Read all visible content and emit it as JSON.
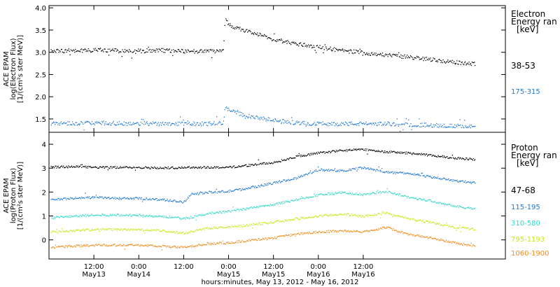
{
  "chart_data": [
    {
      "type": "scatter",
      "panel": "electron",
      "ylabel_lines": [
        "ACE EPAM",
        "log(Electron Flux)",
        "[1/(cm²s ster MeV)]"
      ],
      "ylim": [
        1.2,
        4.05
      ],
      "yticks": [
        1.5,
        2.0,
        2.5,
        3.0,
        3.5,
        4.0
      ],
      "ytick_labels": [
        "1.5",
        "2.0",
        "2.5",
        "3.0",
        "3.5",
        "4.0"
      ],
      "legend_title": [
        "Electron",
        "Energy ran",
        "[keV]"
      ],
      "series": [
        {
          "name": "38-53",
          "color": "#000000",
          "x": [
            0,
            6,
            12,
            18,
            24,
            30,
            36,
            42,
            46.5,
            47,
            48,
            54,
            60,
            66,
            72,
            78,
            84,
            90,
            96,
            102,
            108,
            114
          ],
          "y": [
            3.05,
            3.04,
            3.06,
            3.05,
            3.04,
            3.05,
            3.03,
            3.03,
            3.05,
            3.75,
            3.62,
            3.45,
            3.3,
            3.2,
            3.13,
            3.05,
            3.0,
            2.95,
            2.9,
            2.85,
            2.78,
            2.75
          ]
        },
        {
          "name": "175-315",
          "color": "#1f78d4",
          "x": [
            0,
            6,
            12,
            18,
            24,
            30,
            36,
            42,
            46.5,
            47,
            48,
            54,
            60,
            66,
            72,
            78,
            84,
            90,
            96,
            102,
            108,
            114
          ],
          "y": [
            1.42,
            1.41,
            1.42,
            1.41,
            1.4,
            1.41,
            1.4,
            1.4,
            1.42,
            1.8,
            1.7,
            1.55,
            1.48,
            1.42,
            1.4,
            1.4,
            1.4,
            1.4,
            1.38,
            1.37,
            1.35,
            1.34
          ]
        }
      ]
    },
    {
      "type": "scatter",
      "panel": "proton",
      "ylabel_lines": [
        "ACE EPAM",
        "log(Proton Flux)",
        "[1/(cm²s ster MeV)]"
      ],
      "ylim": [
        -0.8,
        4.5
      ],
      "yticks": [
        0,
        1,
        2,
        3,
        4
      ],
      "ytick_labels": [
        "0",
        "1",
        "2",
        "3",
        "4"
      ],
      "legend_title": [
        "Proton",
        "Energy ran",
        "[keV]"
      ],
      "series": [
        {
          "name": "47-68",
          "color": "#000000",
          "x": [
            0,
            6,
            12,
            18,
            24,
            30,
            36,
            42,
            48,
            54,
            60,
            66,
            72,
            78,
            84,
            90,
            96,
            102,
            108,
            114
          ],
          "y": [
            3.05,
            3.08,
            3.05,
            3.05,
            3.05,
            3.02,
            3.05,
            3.05,
            3.05,
            3.15,
            3.25,
            3.5,
            3.65,
            3.75,
            3.8,
            3.7,
            3.65,
            3.55,
            3.45,
            3.38
          ]
        },
        {
          "name": "115-195",
          "color": "#1f78d4",
          "x": [
            0,
            6,
            12,
            18,
            24,
            30,
            36,
            38,
            42,
            48,
            54,
            60,
            66,
            72,
            78,
            84,
            90,
            96,
            102,
            108,
            114
          ],
          "y": [
            1.7,
            1.75,
            1.8,
            1.75,
            1.75,
            1.7,
            1.6,
            1.95,
            2.0,
            2.05,
            2.2,
            2.4,
            2.6,
            2.95,
            2.9,
            3.05,
            2.85,
            2.8,
            2.65,
            2.5,
            2.4
          ]
        },
        {
          "name": "310-580",
          "color": "#30d8c8",
          "x": [
            0,
            6,
            12,
            18,
            24,
            30,
            36,
            42,
            48,
            54,
            60,
            66,
            72,
            78,
            84,
            90,
            96,
            102,
            108,
            114
          ],
          "y": [
            0.95,
            1.0,
            1.05,
            1.05,
            1.05,
            1.0,
            0.9,
            1.1,
            1.2,
            1.35,
            1.5,
            1.7,
            1.9,
            2.0,
            1.9,
            2.05,
            1.8,
            1.65,
            1.45,
            1.3
          ]
        },
        {
          "name": "795-1193",
          "color": "#c8e81a",
          "x": [
            0,
            6,
            12,
            18,
            24,
            30,
            36,
            42,
            48,
            54,
            60,
            66,
            72,
            78,
            84,
            90,
            96,
            102,
            108,
            114
          ],
          "y": [
            0.35,
            0.4,
            0.45,
            0.45,
            0.45,
            0.4,
            0.3,
            0.5,
            0.55,
            0.65,
            0.75,
            0.9,
            1.0,
            1.1,
            1.0,
            1.15,
            0.9,
            0.75,
            0.55,
            0.45
          ]
        },
        {
          "name": "1060-1900",
          "color": "#f08c1a",
          "x": [
            0,
            6,
            12,
            18,
            24,
            30,
            36,
            42,
            48,
            54,
            60,
            66,
            72,
            78,
            84,
            90,
            96,
            102,
            108,
            114
          ],
          "y": [
            -0.3,
            -0.25,
            -0.2,
            -0.2,
            -0.2,
            -0.25,
            -0.3,
            -0.15,
            -0.1,
            0.0,
            0.1,
            0.25,
            0.35,
            0.4,
            0.35,
            0.55,
            0.25,
            0.1,
            -0.1,
            -0.25
          ]
        }
      ]
    }
  ],
  "x_axis": {
    "unit": "hours since 2012-05-13 00:00 UT",
    "xlim": [
      0,
      122
    ],
    "ticks": [
      {
        "x": 12,
        "time": "12:00",
        "date": "May13"
      },
      {
        "x": 24,
        "time": "0:00",
        "date": "May14"
      },
      {
        "x": 36,
        "time": "12:00",
        "date": ""
      },
      {
        "x": 48,
        "time": "0:00",
        "date": "May15"
      },
      {
        "x": 60,
        "time": "12:00",
        "date": "May15"
      },
      {
        "x": 72,
        "time": "0:00",
        "date": "May16"
      },
      {
        "x": 84,
        "time": "12:00",
        "date": "May16"
      }
    ],
    "title": "hours:minutes, May 13, 2012 - May 16, 2012"
  }
}
